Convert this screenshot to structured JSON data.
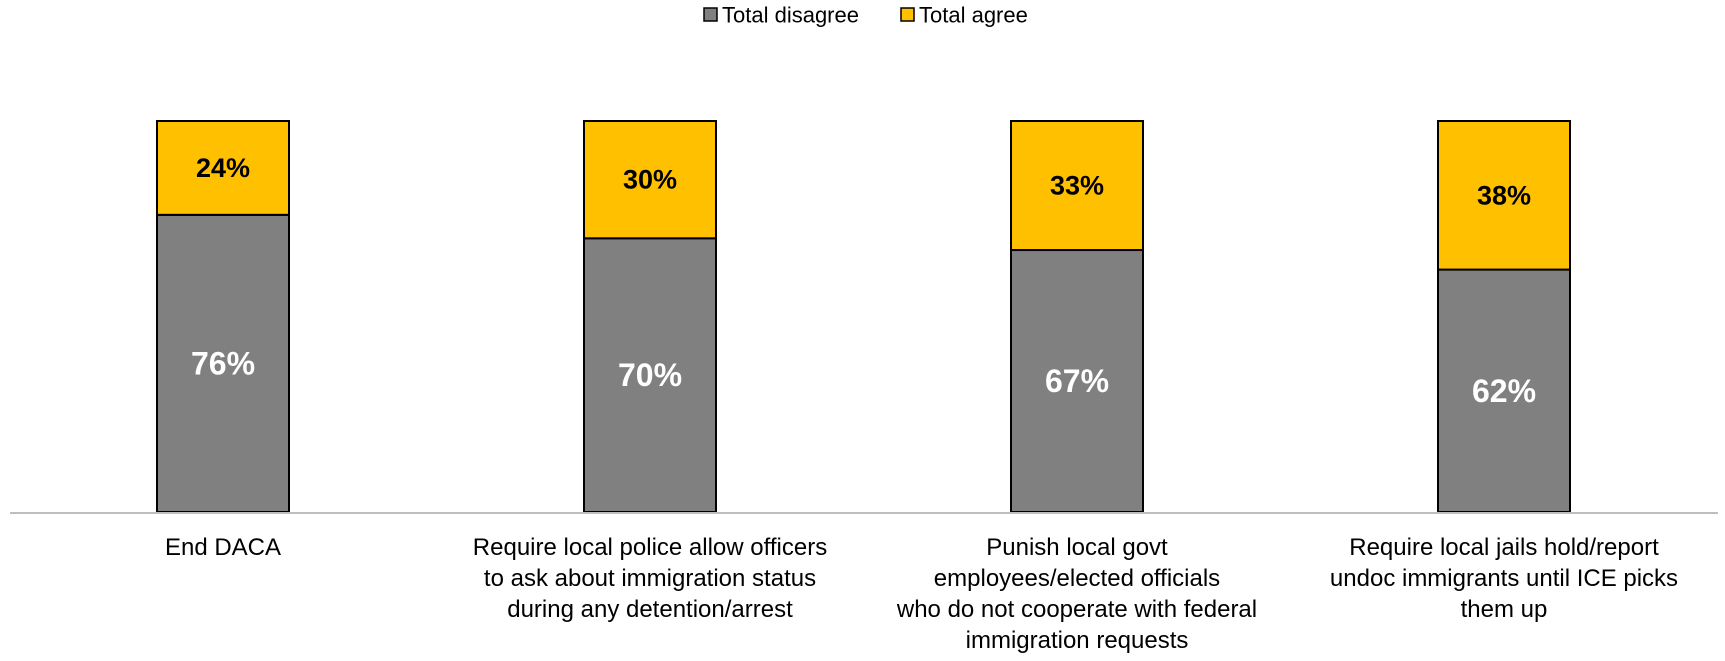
{
  "chart_data": {
    "type": "bar",
    "stacked": true,
    "categories": [
      [
        "End DACA"
      ],
      [
        "Require local police allow officers",
        "to ask about immigration status",
        "during any detention/arrest"
      ],
      [
        "Punish local govt",
        "employees/elected officials",
        "who do not cooperate with federal",
        "immigration requests"
      ],
      [
        "Require local jails hold/report",
        "undoc immigrants until ICE picks",
        "them up"
      ]
    ],
    "series": [
      {
        "name": "Total disagree",
        "values": [
          76,
          70,
          67,
          62
        ],
        "labels": [
          "76%",
          "70%",
          "67%",
          "62%"
        ],
        "color": "#808080",
        "label_color": "#ffffff"
      },
      {
        "name": "Total agree",
        "values": [
          24,
          30,
          33,
          38
        ],
        "labels": [
          "24%",
          "30%",
          "33%",
          "38%"
        ],
        "color": "#ffc000",
        "label_color": "#000000"
      }
    ],
    "ylim": [
      0,
      100
    ],
    "legend_position": "top-center",
    "grid": false,
    "axis_color": "#bfbfbf"
  }
}
